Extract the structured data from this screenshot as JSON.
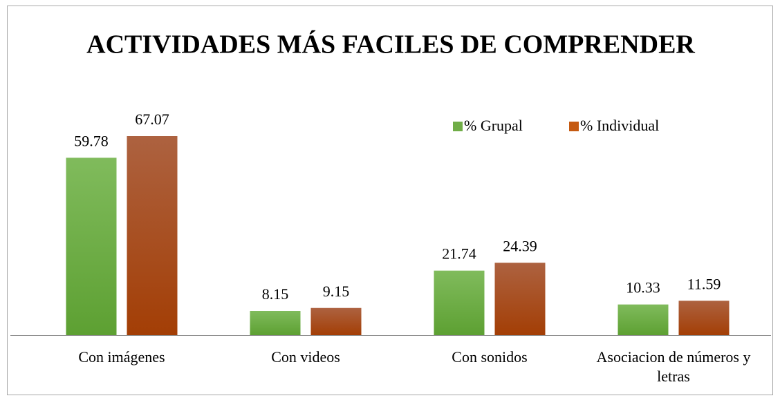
{
  "chart_data": {
    "type": "bar",
    "title": "ACTIVIDADES MÁS FACILES DE COMPRENDER",
    "categories": [
      "Con imágenes",
      "Con videos",
      "Con sonidos",
      "Asociacion de números y letras"
    ],
    "series": [
      {
        "name": "% Grupal",
        "color": "#70ad47",
        "values": [
          59.78,
          8.15,
          21.74,
          10.33
        ]
      },
      {
        "name": "% Individual",
        "color": "#c55a11",
        "values": [
          67.07,
          9.15,
          24.39,
          11.59
        ]
      }
    ],
    "legend_position": "top-right"
  }
}
